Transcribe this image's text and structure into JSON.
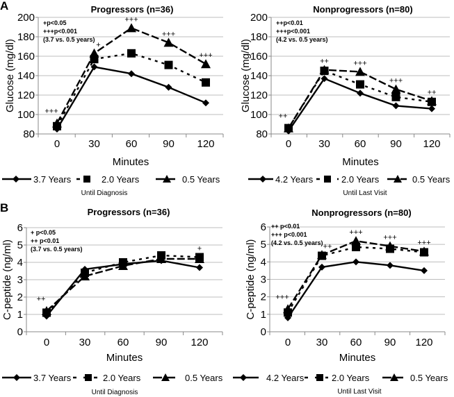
{
  "figure": {
    "panel_labels": [
      "A",
      "B"
    ]
  },
  "chart_data": [
    {
      "type": "line",
      "panel": "A",
      "title": "Progressors (n=36)",
      "xlabel": "Minutes",
      "ylabel": "Glucose (mg/dl)",
      "categories": [
        "0",
        "30",
        "60",
        "90",
        "120"
      ],
      "ylim": [
        80,
        200
      ],
      "yticks": [
        "80",
        "100",
        "120",
        "140",
        "160",
        "180",
        "200"
      ],
      "grid": true,
      "legend_caption": "Until Diagnosis",
      "notes": [
        "+p<0.05",
        "+++p<0.001",
        "(3.7 vs. 0.5 years)"
      ],
      "annotations": [
        {
          "x": "0",
          "text": "+++"
        },
        {
          "x": "30",
          "text": "+"
        },
        {
          "x": "60",
          "text": "+++"
        },
        {
          "x": "90",
          "text": "+++"
        },
        {
          "x": "120",
          "text": "+++"
        }
      ],
      "series": [
        {
          "name": "3.7 Years",
          "marker": "diamond",
          "line": "solid",
          "values": [
            85,
            149,
            142,
            128,
            112
          ]
        },
        {
          "name": "2.0 Years",
          "marker": "square",
          "line": "dotted",
          "values": [
            88,
            157,
            163,
            151,
            133
          ]
        },
        {
          "name": "0.5 Years",
          "marker": "triangle",
          "line": "dashed",
          "values": [
            91,
            163,
            189,
            174,
            152
          ]
        }
      ]
    },
    {
      "type": "line",
      "panel": "A",
      "title": "Nonprogressors (n=80)",
      "xlabel": "Minutes",
      "ylabel": "Glucose (mg/dl)",
      "categories": [
        "0",
        "30",
        "60",
        "90",
        "120"
      ],
      "ylim": [
        80,
        200
      ],
      "yticks": [
        "80",
        "100",
        "120",
        "140",
        "160",
        "180",
        "200"
      ],
      "grid": true,
      "legend_caption": "Until Last Visit",
      "notes": [
        "++p<0.01",
        "+++p<0.001",
        "(4.2 vs. 0.5 years)"
      ],
      "annotations": [
        {
          "x": "0",
          "text": "++"
        },
        {
          "x": "30",
          "text": "++"
        },
        {
          "x": "60",
          "text": "+++"
        },
        {
          "x": "90",
          "text": "+++"
        },
        {
          "x": "120",
          "text": "++"
        }
      ],
      "series": [
        {
          "name": "4.2 Years",
          "marker": "diamond",
          "line": "solid",
          "values": [
            83,
            137,
            122,
            109,
            106
          ]
        },
        {
          "name": "2.0 Years",
          "marker": "square",
          "line": "dotted",
          "values": [
            86,
            145,
            131,
            118,
            113
          ]
        },
        {
          "name": "0.5 Years",
          "marker": "triangle",
          "line": "dashed",
          "values": [
            86,
            146,
            144,
            126,
            114
          ]
        }
      ]
    },
    {
      "type": "line",
      "panel": "B",
      "title": "Progressors (n=36)",
      "xlabel": "Minutes",
      "ylabel": "C-peptide (ng/ml)",
      "categories": [
        "0",
        "30",
        "60",
        "90",
        "120"
      ],
      "ylim": [
        0,
        6
      ],
      "yticks": [
        "0",
        "1",
        "2",
        "3",
        "4",
        "5",
        "6"
      ],
      "grid": true,
      "legend_caption": "Until Diagnosis",
      "notes": [
        "+ p<0.05",
        "++ p<0.01",
        "(3.7 vs. 0.5 years)"
      ],
      "annotations": [
        {
          "x": "0",
          "text": "++"
        },
        {
          "x": "120",
          "text": "+"
        }
      ],
      "series": [
        {
          "name": "3.7 Years",
          "marker": "diamond",
          "line": "solid",
          "values": [
            0.9,
            3.6,
            3.9,
            4.1,
            3.7
          ]
        },
        {
          "name": "2.0 Years",
          "marker": "square",
          "line": "dotted",
          "values": [
            1.1,
            3.4,
            4.0,
            4.4,
            4.3
          ]
        },
        {
          "name": "0.5 Years",
          "marker": "triangle",
          "line": "dashed",
          "values": [
            1.2,
            3.2,
            3.8,
            4.2,
            4.2
          ]
        }
      ]
    },
    {
      "type": "line",
      "panel": "B",
      "title": "Nonprogressors (n=80)",
      "xlabel": "Minutes",
      "ylabel": "C-peptide (ng/ml)",
      "categories": [
        "0",
        "30",
        "60",
        "90",
        "120"
      ],
      "ylim": [
        0,
        6
      ],
      "yticks": [
        "0",
        "1",
        "2",
        "3",
        "4",
        "5",
        "6"
      ],
      "grid": true,
      "legend_caption": "Until Last Visit",
      "notes": [
        "++ p<0.01",
        "+++ p<0.001",
        "(4.2 vs. 0.5 years)"
      ],
      "annotations": [
        {
          "x": "0",
          "text": "+++"
        },
        {
          "x": "30",
          "text": "++"
        },
        {
          "x": "60",
          "text": "+++"
        },
        {
          "x": "90",
          "text": "+++"
        },
        {
          "x": "120",
          "text": "+++"
        }
      ],
      "series": [
        {
          "name": "4.2 Years",
          "marker": "diamond",
          "line": "solid",
          "values": [
            0.8,
            3.7,
            4.0,
            3.8,
            3.5
          ]
        },
        {
          "name": "2.0 Years",
          "marker": "square",
          "line": "dotted",
          "values": [
            1.1,
            4.35,
            4.85,
            4.75,
            4.55
          ]
        },
        {
          "name": "0.5 Years",
          "marker": "triangle",
          "line": "dashed",
          "values": [
            1.3,
            4.4,
            5.2,
            4.9,
            4.6
          ]
        }
      ]
    }
  ]
}
